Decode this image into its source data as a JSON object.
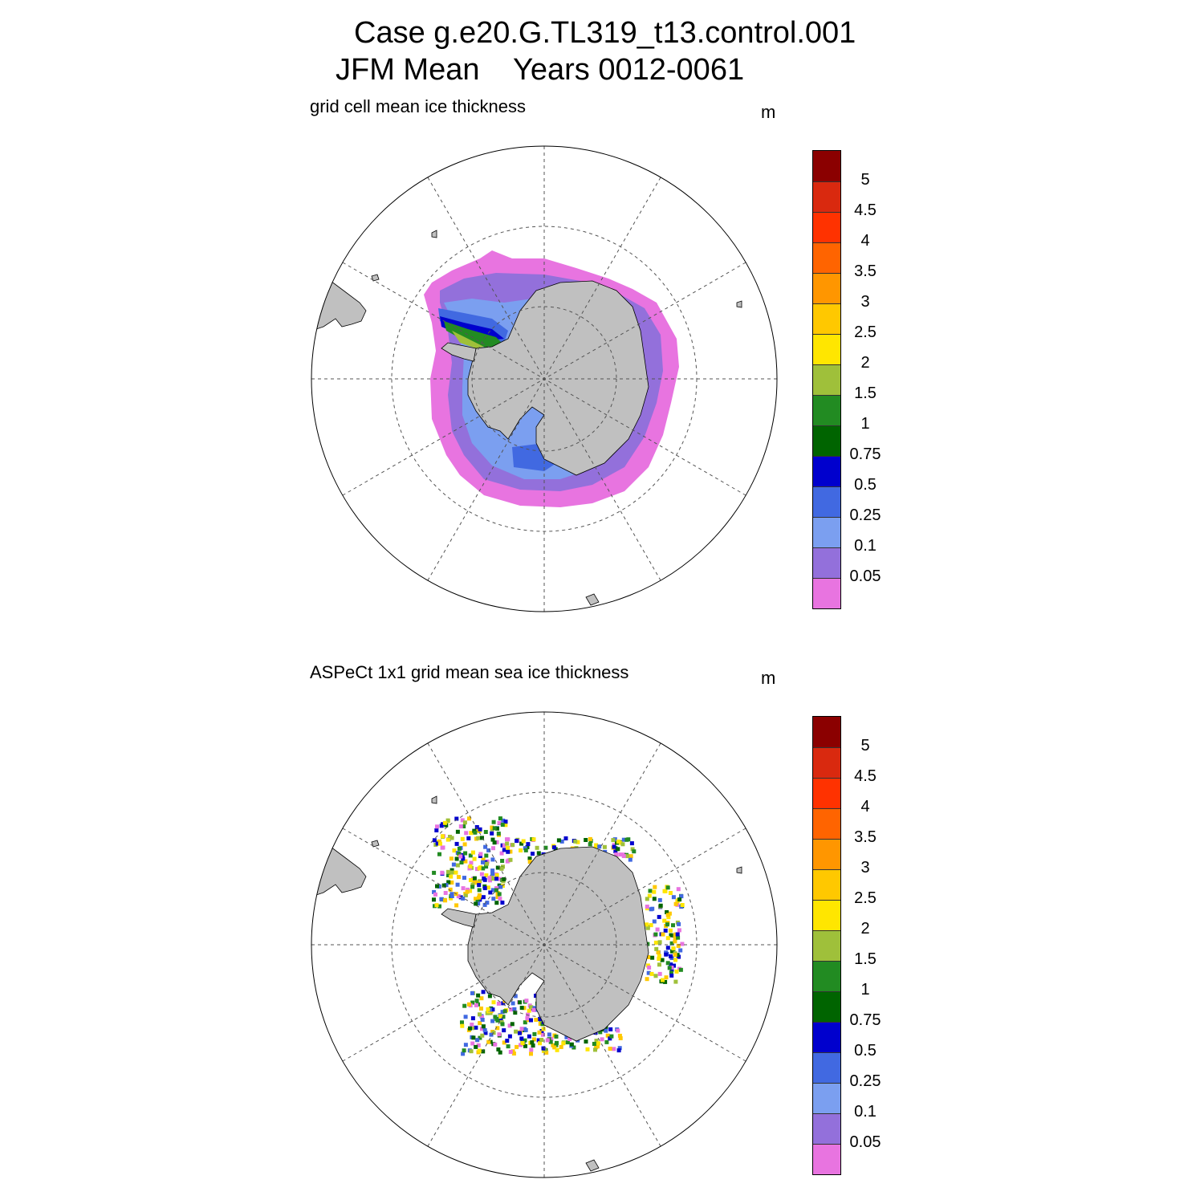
{
  "title": {
    "line1": "Case g.e20.G.TL319_t13.control.001",
    "line2": "JFM Mean    Years 0012-0061"
  },
  "panels": [
    {
      "subtitle": "grid cell mean ice thickness",
      "units": "m"
    },
    {
      "subtitle": "ASPeCt 1x1 grid mean sea ice thickness",
      "units": "m"
    }
  ],
  "colorbar": {
    "labels": [
      "5",
      "4.5",
      "4",
      "3.5",
      "3",
      "2.5",
      "2",
      "1.5",
      "1",
      "0.75",
      "0.5",
      "0.25",
      "0.1",
      "0.05"
    ],
    "colors": [
      "#8b0000",
      "#d9290f",
      "#ff3200",
      "#ff6400",
      "#ff9600",
      "#ffc800",
      "#ffe600",
      "#9fc03a",
      "#228b22",
      "#006400",
      "#0000cd",
      "#4169e1",
      "#7b9ff0",
      "#9370db",
      "#e874e0"
    ]
  },
  "map": {
    "projection": "south polar stereographic",
    "land_color": "#c0c0c0",
    "ocean_color": "#ffffff"
  }
}
